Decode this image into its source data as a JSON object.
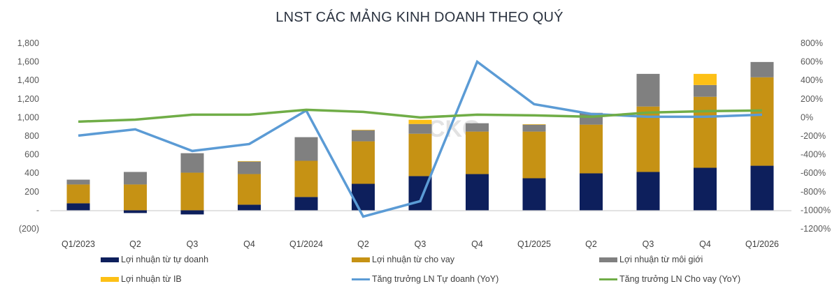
{
  "chart_data": {
    "type": "bar",
    "subtype": "stacked bar + line (dual axis)",
    "title": "LNST CÁC MẢNG KINH DOANH THEO QUÝ",
    "categories": [
      "Q1/2023",
      "Q2",
      "Q3",
      "Q4",
      "Q1/2024",
      "Q2",
      "Q3",
      "Q4",
      "Q1/2025",
      "Q2",
      "Q3",
      "Q4",
      "Q1/2026"
    ],
    "left_axis": {
      "ticks": [
        "1,800",
        "1,600",
        "1,400",
        "1,200",
        "1,000",
        "800",
        "600",
        "400",
        "200",
        "-",
        "(200)"
      ],
      "ylim": [
        -200,
        1800
      ]
    },
    "right_axis": {
      "ticks": [
        "800%",
        "600%",
        "400%",
        "200%",
        "0%",
        "-200%",
        "-400%",
        "-600%",
        "-800%",
        "-1000%",
        "-1200%"
      ],
      "ylim": [
        -1200,
        800
      ]
    },
    "series": [
      {
        "name": "Lợi nhuận từ tự doanh",
        "kind": "bar",
        "axis": "left",
        "color": "#0d1f5c",
        "values": [
          75,
          -30,
          -45,
          60,
          143,
          285,
          368,
          390,
          345,
          398,
          413,
          458,
          480
        ]
      },
      {
        "name": "Lợi nhuận từ cho vay",
        "kind": "bar",
        "axis": "left",
        "color": "#c69214",
        "values": [
          203,
          278,
          405,
          330,
          390,
          458,
          457,
          458,
          503,
          525,
          705,
          765,
          953
        ]
      },
      {
        "name": "Lợi nhuận từ môi giới",
        "kind": "bar",
        "axis": "left",
        "color": "#808080",
        "values": [
          52,
          135,
          210,
          135,
          255,
          120,
          105,
          90,
          75,
          127,
          352,
          127,
          165
        ]
      },
      {
        "name": "Lợi nhuận từ IB",
        "kind": "bar",
        "axis": "left",
        "color": "#fdc016",
        "values": [
          0,
          0,
          0,
          5,
          0,
          5,
          45,
          0,
          5,
          0,
          0,
          120,
          0
        ]
      },
      {
        "name": "Tăng trưởng LN Tự doanh (YoY)",
        "kind": "line",
        "axis": "right",
        "color": "#5b9bd5",
        "values": [
          -195,
          -128,
          -361,
          -286,
          75,
          -1068,
          -902,
          601,
          143,
          38,
          8,
          8,
          30
        ]
      },
      {
        "name": "Tăng trưởng LN Cho vay (YoY)",
        "kind": "line",
        "axis": "right",
        "color": "#70ad47",
        "values": [
          -45,
          -23,
          30,
          30,
          83,
          60,
          0,
          30,
          23,
          8,
          53,
          68,
          75
        ]
      }
    ],
    "legend_position": "bottom",
    "grid": false
  },
  "legend": {
    "items": [
      {
        "label": "Lợi nhuận từ tự doanh"
      },
      {
        "label": "Lợi nhuận từ cho vay"
      },
      {
        "label": "Lợi nhuận từ môi giới"
      },
      {
        "label": "Lợi nhuận từ IB"
      },
      {
        "label": "Tăng trưởng LN Tự doanh (YoY)"
      },
      {
        "label": "Tăng trưởng LN Cho vay (YoY)"
      }
    ]
  },
  "watermark": "CKG"
}
